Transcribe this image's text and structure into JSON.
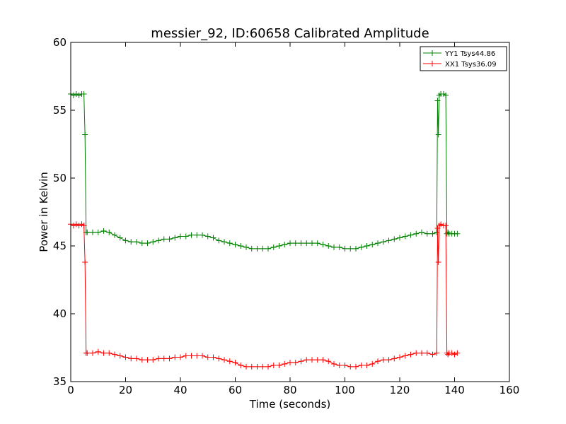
{
  "chart_data": {
    "type": "line",
    "title": "messier_92, ID:60658 Calibrated Amplitude",
    "xlabel": "Time (seconds)",
    "ylabel": "Power in Kelvin",
    "xlim": [
      0,
      160
    ],
    "ylim": [
      35,
      60
    ],
    "xticks": [
      0,
      20,
      40,
      60,
      80,
      100,
      120,
      140,
      160
    ],
    "yticks": [
      35,
      40,
      45,
      50,
      55,
      60
    ],
    "grid": false,
    "legend_position": "top-right",
    "marker": "+",
    "series": [
      {
        "name": "YY1 Tsys44.86",
        "color": "#008000",
        "x": [
          0,
          1,
          2,
          3,
          4,
          4.8,
          5.2,
          5.6,
          6,
          8,
          10,
          12,
          14,
          16,
          18,
          20,
          22,
          24,
          26,
          28,
          30,
          32,
          34,
          36,
          38,
          40,
          42,
          44,
          46,
          48,
          50,
          52,
          54,
          56,
          58,
          60,
          62,
          64,
          66,
          68,
          70,
          72,
          74,
          76,
          78,
          80,
          82,
          84,
          86,
          88,
          90,
          92,
          94,
          96,
          98,
          100,
          102,
          104,
          106,
          108,
          110,
          112,
          114,
          116,
          118,
          120,
          122,
          124,
          126,
          128,
          130,
          132,
          133.5,
          133.8,
          134.1,
          134.4,
          135,
          136,
          136.8,
          137.2,
          137.6,
          138,
          139,
          140,
          141
        ],
        "values": [
          56.2,
          56.1,
          56.2,
          56.1,
          56.2,
          56.2,
          53.2,
          46.0,
          46.0,
          46.0,
          46.0,
          46.1,
          46.0,
          45.8,
          45.6,
          45.4,
          45.3,
          45.3,
          45.2,
          45.2,
          45.3,
          45.4,
          45.5,
          45.5,
          45.6,
          45.7,
          45.7,
          45.8,
          45.8,
          45.8,
          45.7,
          45.6,
          45.4,
          45.3,
          45.2,
          45.1,
          45.0,
          44.9,
          44.8,
          44.8,
          44.8,
          44.8,
          44.9,
          45.0,
          45.1,
          45.2,
          45.2,
          45.2,
          45.2,
          45.2,
          45.2,
          45.1,
          45.0,
          44.9,
          44.9,
          44.8,
          44.8,
          44.8,
          44.9,
          45.0,
          45.1,
          45.2,
          45.3,
          45.4,
          45.5,
          45.6,
          45.7,
          45.8,
          45.9,
          46.0,
          45.9,
          45.9,
          46.0,
          55.7,
          53.2,
          56.1,
          56.2,
          56.2,
          56.1,
          45.9,
          46.0,
          45.9,
          45.9,
          45.9,
          45.9
        ]
      },
      {
        "name": "XX1 Tsys36.09",
        "color": "#ff0000",
        "x": [
          0,
          1,
          2,
          3,
          4,
          4.8,
          5.2,
          5.6,
          6,
          8,
          10,
          12,
          14,
          16,
          18,
          20,
          22,
          24,
          26,
          28,
          30,
          32,
          34,
          36,
          38,
          40,
          42,
          44,
          46,
          48,
          50,
          52,
          54,
          56,
          58,
          60,
          62,
          64,
          66,
          68,
          70,
          72,
          74,
          76,
          78,
          80,
          82,
          84,
          86,
          88,
          90,
          92,
          94,
          96,
          98,
          100,
          102,
          104,
          106,
          108,
          110,
          112,
          114,
          116,
          118,
          120,
          122,
          124,
          126,
          128,
          130,
          132,
          133.5,
          133.8,
          134.1,
          134.4,
          135,
          136,
          136.8,
          137.2,
          137.6,
          138,
          139,
          140,
          141
        ],
        "values": [
          46.6,
          46.5,
          46.6,
          46.5,
          46.6,
          46.5,
          43.8,
          37.1,
          37.1,
          37.1,
          37.2,
          37.1,
          37.1,
          37.0,
          36.9,
          36.8,
          36.7,
          36.7,
          36.6,
          36.6,
          36.6,
          36.7,
          36.7,
          36.7,
          36.8,
          36.8,
          36.9,
          36.9,
          36.9,
          36.9,
          36.8,
          36.8,
          36.7,
          36.6,
          36.5,
          36.4,
          36.2,
          36.1,
          36.1,
          36.1,
          36.1,
          36.1,
          36.2,
          36.2,
          36.3,
          36.4,
          36.4,
          36.5,
          36.6,
          36.6,
          36.6,
          36.6,
          36.5,
          36.3,
          36.2,
          36.2,
          36.1,
          36.1,
          36.2,
          36.2,
          36.3,
          36.5,
          36.6,
          36.6,
          36.7,
          36.8,
          36.9,
          37.0,
          37.1,
          37.1,
          37.1,
          37.0,
          37.1,
          46.3,
          43.8,
          46.5,
          46.6,
          46.5,
          46.5,
          37.1,
          37.0,
          37.1,
          37.1,
          37.0,
          37.1
        ]
      }
    ]
  }
}
